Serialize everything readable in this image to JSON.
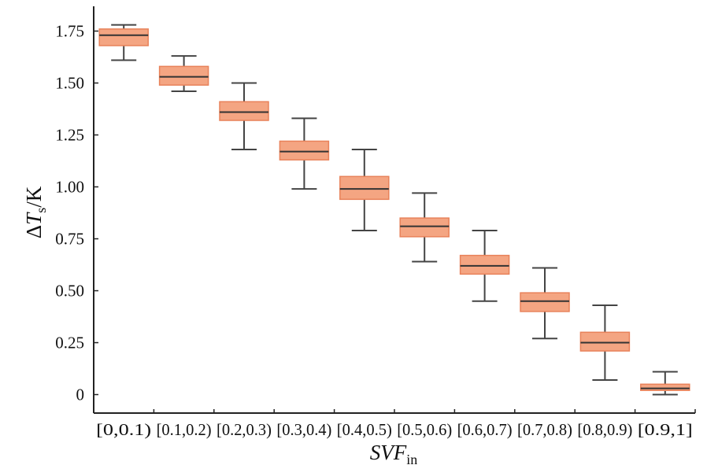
{
  "chart_data": {
    "type": "box",
    "xlabel": {
      "main": "SVF",
      "sub": "in"
    },
    "ylabel": {
      "delta": "Δ",
      "var": "T",
      "sub": "s",
      "unit": "/K"
    },
    "ylim": [
      -0.09,
      1.87
    ],
    "yticks": [
      "0",
      "0.25",
      "0.50",
      "0.75",
      "1.00",
      "1.25",
      "1.50",
      "1.75"
    ],
    "ytick_values": [
      0,
      0.25,
      0.5,
      0.75,
      1.0,
      1.25,
      1.5,
      1.75
    ],
    "categories": [
      "[0,0.1)",
      "[0.1,0.2)",
      "[0.2,0.3)",
      "[0.3,0.4)",
      "[0.4,0.5)",
      "[0.5,0.6)",
      "[0.6,0.7)",
      "[0.7,0.8)",
      "[0.8,0.9)",
      "[0.9,1]"
    ],
    "boxes": [
      {
        "whislo": 1.61,
        "q1": 1.68,
        "med": 1.73,
        "q3": 1.76,
        "whishi": 1.78
      },
      {
        "whislo": 1.46,
        "q1": 1.49,
        "med": 1.53,
        "q3": 1.58,
        "whishi": 1.63
      },
      {
        "whislo": 1.18,
        "q1": 1.32,
        "med": 1.36,
        "q3": 1.41,
        "whishi": 1.5
      },
      {
        "whislo": 0.99,
        "q1": 1.13,
        "med": 1.17,
        "q3": 1.22,
        "whishi": 1.33
      },
      {
        "whislo": 0.79,
        "q1": 0.94,
        "med": 0.99,
        "q3": 1.05,
        "whishi": 1.18
      },
      {
        "whislo": 0.64,
        "q1": 0.76,
        "med": 0.81,
        "q3": 0.85,
        "whishi": 0.97
      },
      {
        "whislo": 0.45,
        "q1": 0.58,
        "med": 0.62,
        "q3": 0.67,
        "whishi": 0.79
      },
      {
        "whislo": 0.27,
        "q1": 0.4,
        "med": 0.45,
        "q3": 0.49,
        "whishi": 0.61
      },
      {
        "whislo": 0.07,
        "q1": 0.21,
        "med": 0.25,
        "q3": 0.3,
        "whishi": 0.43
      },
      {
        "whislo": 0.0,
        "q1": 0.02,
        "med": 0.03,
        "q3": 0.05,
        "whishi": 0.11
      }
    ],
    "box_color": "#f4a582",
    "box_edge_color": "#e8825a",
    "whisker_color": "#444444",
    "median_color": "#333333",
    "grid": false
  }
}
